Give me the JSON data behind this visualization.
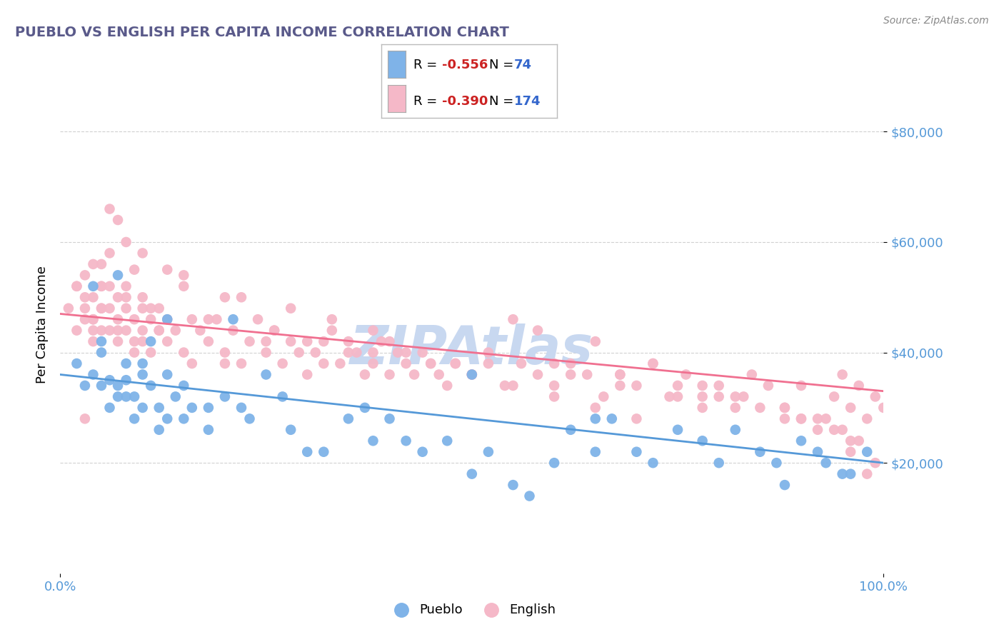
{
  "title": "PUEBLO VS ENGLISH PER CAPITA INCOME CORRELATION CHART",
  "source_text": "Source: ZipAtlas.com",
  "ylabel": "Per Capita Income",
  "x_min": 0.0,
  "x_max": 1.0,
  "y_min": 0,
  "y_max": 90000,
  "x_tick_labels": [
    "0.0%",
    "100.0%"
  ],
  "y_tick_values": [
    20000,
    40000,
    60000,
    80000
  ],
  "pueblo_R": "-0.556",
  "pueblo_N": "74",
  "english_R": "-0.390",
  "english_N": "174",
  "pueblo_color": "#7fb3e8",
  "english_color": "#f5b8c8",
  "pueblo_line_color": "#5599d8",
  "english_line_color": "#f07090",
  "title_color": "#5a5a8a",
  "axis_label_color": "#5599d8",
  "watermark_color": "#c8d8f0",
  "background_color": "#ffffff",
  "grid_color": "#cccccc",
  "pueblo_line_intercept": 36000,
  "pueblo_line_slope": -16000,
  "english_line_intercept": 47000,
  "english_line_slope": -14000,
  "pueblo_scatter_x": [
    0.02,
    0.03,
    0.04,
    0.05,
    0.05,
    0.05,
    0.06,
    0.06,
    0.07,
    0.07,
    0.08,
    0.08,
    0.08,
    0.09,
    0.09,
    0.1,
    0.1,
    0.11,
    0.11,
    0.12,
    0.12,
    0.13,
    0.13,
    0.14,
    0.15,
    0.15,
    0.16,
    0.18,
    0.2,
    0.22,
    0.25,
    0.28,
    0.3,
    0.32,
    0.35,
    0.38,
    0.4,
    0.44,
    0.47,
    0.5,
    0.52,
    0.55,
    0.57,
    0.6,
    0.62,
    0.65,
    0.67,
    0.7,
    0.72,
    0.75,
    0.78,
    0.8,
    0.82,
    0.85,
    0.87,
    0.88,
    0.9,
    0.92,
    0.93,
    0.95,
    0.96,
    0.98,
    0.04,
    0.07,
    0.1,
    0.13,
    0.18,
    0.21,
    0.23,
    0.27,
    0.37,
    0.42,
    0.5,
    0.65
  ],
  "pueblo_scatter_y": [
    38000,
    34000,
    36000,
    34000,
    40000,
    42000,
    30000,
    35000,
    54000,
    32000,
    32000,
    35000,
    38000,
    28000,
    32000,
    36000,
    30000,
    42000,
    34000,
    30000,
    26000,
    36000,
    28000,
    32000,
    28000,
    34000,
    30000,
    30000,
    32000,
    30000,
    36000,
    26000,
    22000,
    22000,
    28000,
    24000,
    28000,
    22000,
    24000,
    18000,
    22000,
    16000,
    14000,
    20000,
    26000,
    22000,
    28000,
    22000,
    20000,
    26000,
    24000,
    20000,
    26000,
    22000,
    20000,
    16000,
    24000,
    22000,
    20000,
    18000,
    18000,
    22000,
    52000,
    34000,
    38000,
    46000,
    26000,
    46000,
    28000,
    32000,
    30000,
    24000,
    36000,
    28000
  ],
  "english_scatter_x": [
    0.01,
    0.02,
    0.02,
    0.03,
    0.03,
    0.03,
    0.04,
    0.04,
    0.04,
    0.05,
    0.05,
    0.05,
    0.05,
    0.06,
    0.06,
    0.06,
    0.07,
    0.07,
    0.07,
    0.07,
    0.08,
    0.08,
    0.08,
    0.09,
    0.09,
    0.1,
    0.1,
    0.1,
    0.11,
    0.11,
    0.12,
    0.12,
    0.13,
    0.13,
    0.14,
    0.15,
    0.16,
    0.17,
    0.18,
    0.19,
    0.2,
    0.21,
    0.22,
    0.23,
    0.24,
    0.25,
    0.26,
    0.27,
    0.28,
    0.29,
    0.3,
    0.31,
    0.32,
    0.33,
    0.34,
    0.35,
    0.36,
    0.37,
    0.38,
    0.39,
    0.4,
    0.41,
    0.42,
    0.43,
    0.44,
    0.45,
    0.46,
    0.47,
    0.48,
    0.5,
    0.52,
    0.54,
    0.56,
    0.58,
    0.6,
    0.62,
    0.64,
    0.66,
    0.68,
    0.7,
    0.72,
    0.74,
    0.76,
    0.78,
    0.8,
    0.82,
    0.84,
    0.86,
    0.88,
    0.9,
    0.92,
    0.94,
    0.95,
    0.96,
    0.97,
    0.98,
    0.99,
    1.0,
    0.03,
    0.04,
    0.05,
    0.06,
    0.07,
    0.08,
    0.09,
    0.1,
    0.11,
    0.13,
    0.15,
    0.18,
    0.22,
    0.26,
    0.3,
    0.35,
    0.4,
    0.45,
    0.5,
    0.55,
    0.6,
    0.65,
    0.7,
    0.75,
    0.8,
    0.85,
    0.9,
    0.95,
    0.55,
    0.65,
    0.72,
    0.48,
    0.38,
    0.28,
    0.58,
    0.68,
    0.78,
    0.88,
    0.92,
    0.96,
    0.02,
    0.03,
    0.06,
    0.1,
    0.15,
    0.2,
    0.33,
    0.5,
    0.75,
    0.9,
    0.96,
    0.98,
    0.05,
    0.12,
    0.25,
    0.42,
    0.6,
    0.78,
    0.88,
    0.93,
    0.97,
    0.99,
    0.04,
    0.08,
    0.16,
    0.32,
    0.52,
    0.68,
    0.82,
    0.94,
    0.04,
    0.09,
    0.2,
    0.38,
    0.62,
    0.83
  ],
  "english_scatter_y": [
    48000,
    44000,
    52000,
    46000,
    50000,
    54000,
    42000,
    46000,
    50000,
    44000,
    48000,
    52000,
    56000,
    44000,
    48000,
    52000,
    42000,
    44000,
    46000,
    50000,
    48000,
    52000,
    44000,
    40000,
    46000,
    44000,
    48000,
    42000,
    46000,
    40000,
    44000,
    48000,
    42000,
    46000,
    44000,
    40000,
    38000,
    44000,
    42000,
    46000,
    40000,
    44000,
    38000,
    42000,
    46000,
    40000,
    44000,
    38000,
    42000,
    40000,
    36000,
    40000,
    38000,
    44000,
    38000,
    42000,
    40000,
    36000,
    38000,
    42000,
    36000,
    40000,
    38000,
    36000,
    40000,
    38000,
    36000,
    34000,
    38000,
    36000,
    40000,
    34000,
    38000,
    36000,
    34000,
    38000,
    36000,
    32000,
    36000,
    34000,
    38000,
    32000,
    36000,
    30000,
    34000,
    32000,
    36000,
    34000,
    30000,
    34000,
    28000,
    32000,
    36000,
    30000,
    34000,
    28000,
    32000,
    30000,
    28000,
    56000,
    52000,
    58000,
    64000,
    60000,
    55000,
    50000,
    48000,
    55000,
    52000,
    46000,
    50000,
    44000,
    42000,
    40000,
    42000,
    38000,
    36000,
    34000,
    32000,
    30000,
    28000,
    34000,
    32000,
    30000,
    28000,
    26000,
    46000,
    42000,
    38000,
    38000,
    40000,
    48000,
    44000,
    36000,
    32000,
    28000,
    26000,
    22000,
    52000,
    48000,
    66000,
    58000,
    54000,
    50000,
    46000,
    36000,
    32000,
    28000,
    24000,
    18000,
    48000,
    44000,
    42000,
    40000,
    38000,
    34000,
    30000,
    28000,
    24000,
    20000,
    44000,
    50000,
    46000,
    42000,
    38000,
    34000,
    30000,
    26000,
    46000,
    42000,
    38000,
    44000,
    36000,
    32000
  ]
}
